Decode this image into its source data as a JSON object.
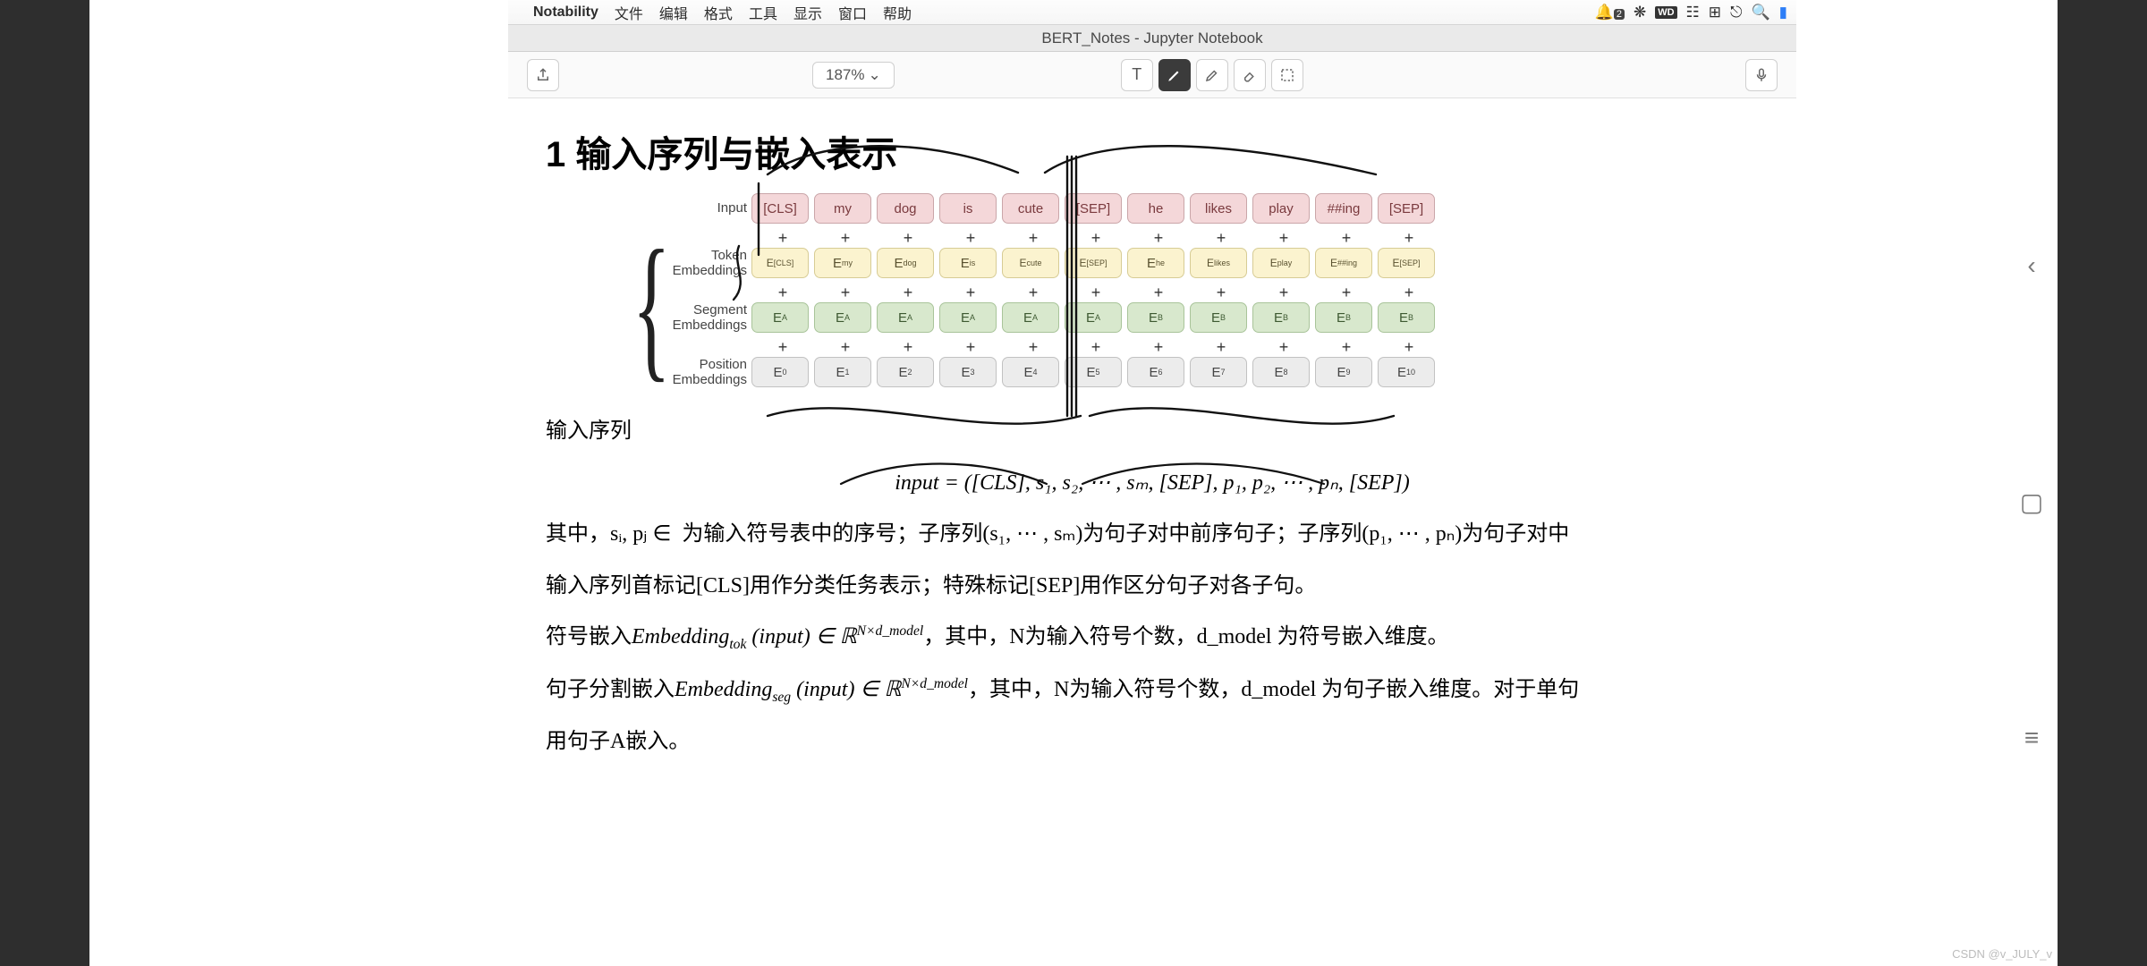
{
  "menubar": {
    "app": "Notability",
    "items": [
      "文件",
      "编辑",
      "格式",
      "工具",
      "显示",
      "窗口",
      "帮助"
    ],
    "right": {
      "notif_count": "2"
    }
  },
  "window_title": "BERT_Notes - Jupyter Notebook",
  "toolbar": {
    "zoom": "187%"
  },
  "heading": "1  输入序列与嵌入表示",
  "diagram": {
    "rows": [
      {
        "key": "input",
        "label": "Input",
        "css": "row-input",
        "cells": [
          "[CLS]",
          "my",
          "dog",
          "is",
          "cute",
          "[SEP]",
          "he",
          "likes",
          "play",
          "##ing",
          "[SEP]"
        ]
      },
      {
        "key": "token",
        "label": "Token\nEmbeddings",
        "css": "row-token",
        "cells": [
          "E_[CLS]",
          "E_my",
          "E_dog",
          "E_is",
          "E_cute",
          "E_[SEP]",
          "E_he",
          "E_likes",
          "E_play",
          "E_##ing",
          "E_[SEP]"
        ]
      },
      {
        "key": "segment",
        "label": "Segment\nEmbeddings",
        "css": "row-seg",
        "cells": [
          "E_A",
          "E_A",
          "E_A",
          "E_A",
          "E_A",
          "E_A",
          "E_B",
          "E_B",
          "E_B",
          "E_B",
          "E_B"
        ]
      },
      {
        "key": "position",
        "label": "Position\nEmbeddings",
        "css": "row-pos",
        "cells": [
          "E_0",
          "E_1",
          "E_2",
          "E_3",
          "E_4",
          "E_5",
          "E_6",
          "E_7",
          "E_8",
          "E_9",
          "E_10"
        ]
      }
    ],
    "plus_count": 11,
    "colors": {
      "input": {
        "bg": "#f4d7d9",
        "border": "#caa6a9"
      },
      "token": {
        "bg": "#fbf3cf",
        "border": "#d7cc95"
      },
      "segment": {
        "bg": "#d8e8cd",
        "border": "#a9c49a"
      },
      "position": {
        "bg": "#ececec",
        "border": "#c2c2c2"
      }
    }
  },
  "body": {
    "p1_label": "输入序列",
    "formula": "input = ([CLS], s₁, s₂, ⋯ , sₘ, [SEP], p₁, p₂, ⋯ , pₙ, [SEP])",
    "p2": "其中，sᵢ, pⱼ ∈ 𝕅 为输入符号表中的序号；子序列(s₁, ⋯ , sₘ)为句子对中前序句子；子序列(p₁, ⋯ , pₙ)为句子对中",
    "p3": "输入序列首标记[CLS]用作分类任务表示；特殊标记[SEP]用作区分句子对各子句。",
    "p4_pre": "符号嵌入",
    "p4_emb": "Embedding",
    "p4_sub": "tok",
    "p4_mid": " (input) ∈ ℝ",
    "p4_exp": "N×d_model",
    "p4_post": "，其中，N为输入符号个数，d_model 为符号嵌入维度。",
    "p5_pre": "句子分割嵌入",
    "p5_emb": "Embedding",
    "p5_sub": "seg",
    "p5_mid": " (input) ∈ ℝ",
    "p5_exp": "N×d_model",
    "p5_post": "，其中，N为输入符号个数，d_model 为句子嵌入维度。对于单句",
    "p6": "用句子A嵌入。"
  },
  "watermark": "CSDN @v_JULY_v"
}
